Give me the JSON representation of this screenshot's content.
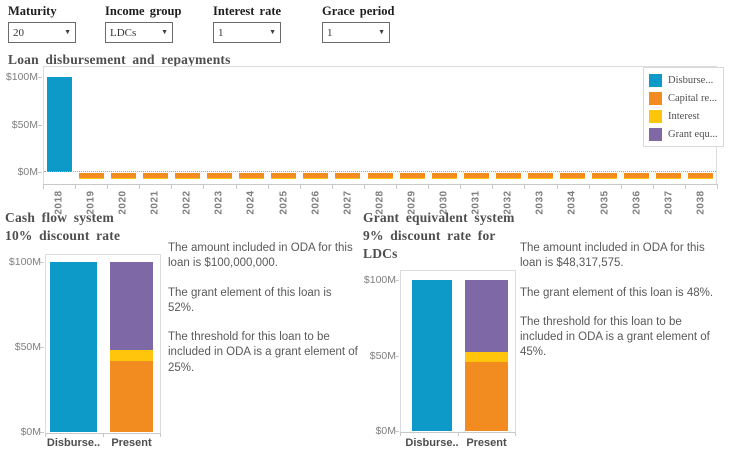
{
  "filters": [
    {
      "label": "Maturity",
      "value": "20"
    },
    {
      "label": "Income group",
      "value": "LDCs"
    },
    {
      "label": "Interest rate",
      "value": "1"
    },
    {
      "label": "Grace period",
      "value": "1"
    }
  ],
  "colors": {
    "disbursement": "#0D9AC8",
    "capital_repayment": "#F28B20",
    "interest": "#FFC40C",
    "grant_equivalent": "#7E68A5"
  },
  "chart_data": [
    {
      "id": "loan-disbursement-and-repayments",
      "type": "bar",
      "stacked": true,
      "title": "Loan disbursement and repayments",
      "x": [
        "2018",
        "2019",
        "2020",
        "2021",
        "2022",
        "2023",
        "2024",
        "2025",
        "2026",
        "2027",
        "2028",
        "2029",
        "2030",
        "2031",
        "2032",
        "2033",
        "2034",
        "2035",
        "2036",
        "2037",
        "2038"
      ],
      "y_ticks": [
        "$0M",
        "$50M",
        "$100M"
      ],
      "ylim": [
        -12,
        105
      ],
      "grid": false,
      "legend_position": "top-right",
      "series": [
        {
          "name": "Disburse...",
          "key": "disbursement",
          "values": [
            100,
            0,
            0,
            0,
            0,
            0,
            0,
            0,
            0,
            0,
            0,
            0,
            0,
            0,
            0,
            0,
            0,
            0,
            0,
            0,
            0
          ]
        },
        {
          "name": "Capital re...",
          "key": "capital_repayment",
          "values": [
            0,
            -5.3,
            -5.3,
            -5.3,
            -5.3,
            -5.3,
            -5.3,
            -5.3,
            -5.3,
            -5.3,
            -5.3,
            -5.3,
            -5.3,
            -5.3,
            -5.3,
            -5.3,
            -5.3,
            -5.3,
            -5.3,
            -5.3,
            -5.3
          ]
        },
        {
          "name": "Interest",
          "key": "interest",
          "values": [
            0,
            -1,
            -1,
            -1,
            -1,
            -1,
            -1,
            -1,
            -1,
            -1,
            -1,
            -1,
            -1,
            -1,
            -1,
            -1,
            -1,
            -1,
            -1,
            -1,
            -1
          ]
        },
        {
          "name": "Grant equ...",
          "key": "grant_equivalent",
          "values": [
            0,
            0,
            0,
            0,
            0,
            0,
            0,
            0,
            0,
            0,
            0,
            0,
            0,
            0,
            0,
            0,
            0,
            0,
            0,
            0,
            0
          ]
        }
      ]
    },
    {
      "id": "cash-flow-system",
      "type": "bar",
      "stacked": true,
      "title": "Cash flow system",
      "subtitle": "10% discount rate",
      "categories": [
        "Disburse..",
        "Present"
      ],
      "y_ticks": [
        "$0M",
        "$50M",
        "$100M"
      ],
      "ylim": [
        0,
        105
      ],
      "series": [
        {
          "name": "Disburse...",
          "key": "disbursement",
          "values": [
            100,
            0
          ]
        },
        {
          "name": "Capital re...",
          "key": "capital_repayment",
          "values": [
            0,
            42
          ]
        },
        {
          "name": "Interest",
          "key": "interest",
          "values": [
            0,
            6
          ]
        },
        {
          "name": "Grant equ...",
          "key": "grant_equivalent",
          "values": [
            0,
            52
          ]
        }
      ],
      "annotation": [
        "The amount included in ODA for this loan is $100,000,000.",
        "The grant element of this loan is 52%.",
        "The threshold for this loan to be included in ODA is a grant element of 25%."
      ]
    },
    {
      "id": "grant-equivalent-system",
      "type": "bar",
      "stacked": true,
      "title": "Grant equivalent system",
      "subtitle": "9% discount rate for LDCs",
      "categories": [
        "Disburse..",
        "Present"
      ],
      "y_ticks": [
        "$0M",
        "$50M",
        "$100M"
      ],
      "ylim": [
        0,
        105
      ],
      "series": [
        {
          "name": "Disburse...",
          "key": "disbursement",
          "values": [
            100,
            0
          ]
        },
        {
          "name": "Capital re...",
          "key": "capital_repayment",
          "values": [
            0,
            46
          ]
        },
        {
          "name": "Interest",
          "key": "interest",
          "values": [
            0,
            6
          ]
        },
        {
          "name": "Grant equ...",
          "key": "grant_equivalent",
          "values": [
            0,
            48
          ]
        }
      ],
      "annotation": [
        "The amount included in ODA for this loan is $48,317,575.",
        "The grant element of this loan is 48%.",
        "The threshold for this loan to be included in ODA is a grant element of 45%."
      ]
    }
  ]
}
